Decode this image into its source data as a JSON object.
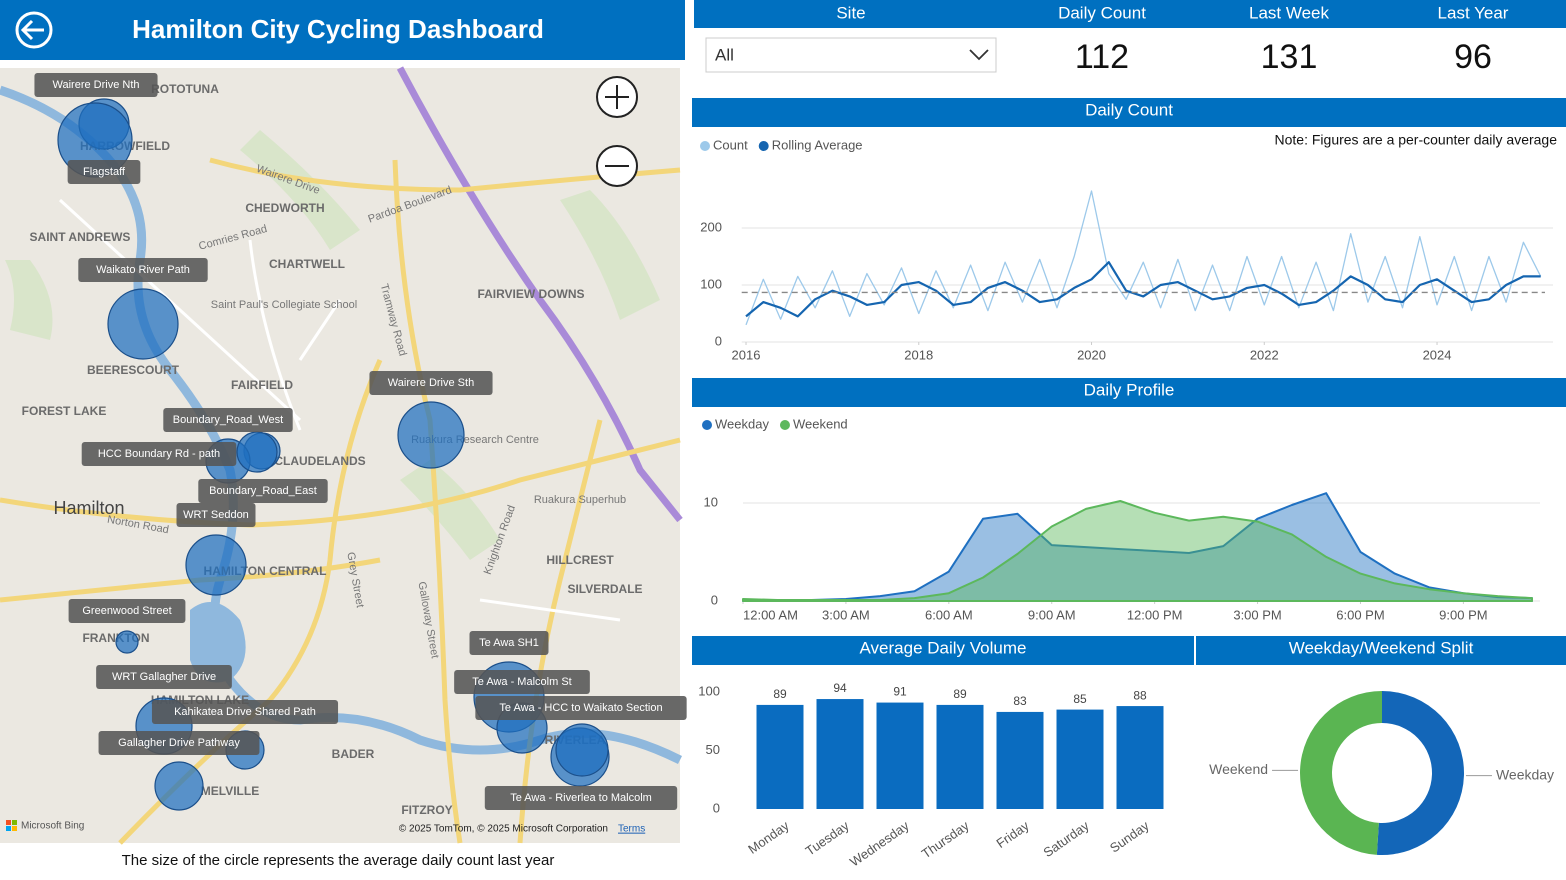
{
  "header": {
    "title": "Hamilton City Cycling Dashboard"
  },
  "kpi": {
    "columns": [
      "Site",
      "Daily Count",
      "Last Week",
      "Last Year"
    ],
    "site_filter": "All",
    "values": [
      112,
      131,
      96
    ]
  },
  "map": {
    "sites": [
      "Wairere Drive Nth",
      "Flagstaff",
      "Waikato River Path",
      "Wairere Drive Sth",
      "Boundary_Road_West",
      "HCC Boundary Rd - path",
      "Boundary_Road_East",
      "WRT Seddon",
      "Greenwood Street",
      "WRT Gallagher Drive",
      "Kahikatea Drive Shared Path",
      "Gallagher Drive Pathway",
      "Te Awa SH1",
      "Te Awa - Malcolm St",
      "Te Awa - HCC to Waikato Section",
      "Te Awa - Riverlea to Malcolm"
    ],
    "places": [
      "ROTOTUNA",
      "HARROWFIELD",
      "CHEDWORTH",
      "SAINT ANDREWS",
      "CHARTWELL",
      "FAIRVIEW DOWNS",
      "BEERESCOURT",
      "FAIRFIELD",
      "FOREST LAKE",
      "CLAUDELANDS",
      "Hamilton",
      "HAMILTON CENTRAL",
      "HILLCREST",
      "SILVERDALE",
      "FRANKTON",
      "HAMILTON LAKE",
      "BADER",
      "MELVILLE",
      "FITZROY",
      "RIVERLEA",
      "Ruakura Superhub",
      "Saint Paul's Collegiate School",
      "Ruakura Research Centre"
    ],
    "roads": [
      "Wairere Drive",
      "Pardoa Boulevard",
      "Comries Road",
      "Tramway Road",
      "Grey Street",
      "Galloway Street",
      "Knighton Road",
      "Norton Road"
    ],
    "attribution": "© 2025 TomTom, © 2025 Microsoft Corporation",
    "terms": "Terms",
    "provider": "Microsoft Bing",
    "caption": "The size of the circle represents the average daily count last year"
  },
  "chart_data": [
    {
      "type": "line",
      "title": "Daily Count",
      "note": "Note: Figures are a per-counter daily average",
      "x": [
        2016,
        2016.2,
        2016.4,
        2016.6,
        2016.8,
        2017,
        2017.2,
        2017.4,
        2017.6,
        2017.8,
        2018,
        2018.2,
        2018.4,
        2018.6,
        2018.8,
        2019,
        2019.2,
        2019.4,
        2019.6,
        2019.8,
        2020,
        2020.2,
        2020.4,
        2020.6,
        2020.8,
        2021,
        2021.2,
        2021.4,
        2021.6,
        2021.8,
        2022,
        2022.2,
        2022.4,
        2022.6,
        2022.8,
        2023,
        2023.2,
        2023.4,
        2023.6,
        2023.8,
        2024,
        2024.2,
        2024.4,
        2024.6,
        2024.8,
        2025,
        2025.2
      ],
      "series": [
        {
          "name": "Count",
          "color": "#9dc9ea",
          "values": [
            30,
            110,
            40,
            115,
            60,
            125,
            45,
            120,
            65,
            130,
            50,
            125,
            60,
            135,
            55,
            140,
            70,
            145,
            60,
            150,
            265,
            120,
            75,
            140,
            60,
            145,
            55,
            135,
            55,
            150,
            65,
            150,
            60,
            140,
            55,
            190,
            70,
            150,
            60,
            185,
            65,
            150,
            55,
            150,
            70,
            175,
            115
          ]
        },
        {
          "name": "Rolling Average",
          "color": "#1565b0",
          "values": [
            45,
            70,
            60,
            45,
            75,
            90,
            80,
            65,
            70,
            100,
            105,
            90,
            65,
            70,
            95,
            105,
            90,
            70,
            75,
            95,
            110,
            140,
            90,
            80,
            100,
            105,
            90,
            75,
            80,
            95,
            100,
            85,
            65,
            70,
            90,
            115,
            100,
            75,
            70,
            100,
            110,
            90,
            70,
            75,
            100,
            115,
            115
          ]
        }
      ],
      "reference_line": 87,
      "xlim": [
        2015.95,
        2025.25
      ],
      "xticks": [
        2016,
        2018,
        2020,
        2022,
        2024
      ],
      "ylim": [
        0,
        300
      ],
      "yticks": [
        0,
        100,
        200
      ],
      "grid": true,
      "legend": "top-left"
    },
    {
      "type": "area",
      "title": "Daily Profile",
      "x": [
        0,
        1,
        2,
        3,
        4,
        5,
        6,
        7,
        8,
        9,
        10,
        11,
        12,
        13,
        14,
        15,
        16,
        17,
        18,
        19,
        20,
        21,
        22,
        23
      ],
      "series": [
        {
          "name": "Weekday",
          "color": "#1f70c1",
          "values": [
            0.1,
            0.1,
            0.1,
            0.2,
            0.5,
            1,
            3,
            8.4,
            8.9,
            5.7,
            5.5,
            5.3,
            5.1,
            4.9,
            5.6,
            8.4,
            9.8,
            11,
            5,
            2.8,
            1.4,
            0.8,
            0.4,
            0.3
          ]
        },
        {
          "name": "Weekend",
          "color": "#5cb85c",
          "values": [
            0.2,
            0.1,
            0.1,
            0.1,
            0.1,
            0.3,
            0.8,
            2.4,
            4.8,
            7.6,
            9.4,
            10.2,
            9,
            8.2,
            8.6,
            8.1,
            6.8,
            4.5,
            2.8,
            1.8,
            1.2,
            0.8,
            0.5,
            0.3
          ]
        }
      ],
      "xlim": [
        0,
        23
      ],
      "xticks": [
        {
          "value": 0,
          "label": "12:00 AM"
        },
        {
          "value": 3,
          "label": "3:00 AM"
        },
        {
          "value": 6,
          "label": "6:00 AM"
        },
        {
          "value": 9,
          "label": "9:00 AM"
        },
        {
          "value": 12,
          "label": "12:00 PM"
        },
        {
          "value": 15,
          "label": "3:00 PM"
        },
        {
          "value": 18,
          "label": "6:00 PM"
        },
        {
          "value": 21,
          "label": "9:00 PM"
        }
      ],
      "ylim": [
        0,
        15
      ],
      "yticks": [
        0,
        10
      ],
      "grid": true,
      "legend": "top-left"
    },
    {
      "type": "bar",
      "title": "Average Daily Volume",
      "categories": [
        "Monday",
        "Tuesday",
        "Wednesday",
        "Thursday",
        "Friday",
        "Saturday",
        "Sunday"
      ],
      "values": [
        89,
        94,
        91,
        89,
        83,
        85,
        88
      ],
      "color": "#0a6cc0",
      "ylim": [
        0,
        115
      ],
      "yticks": [
        0,
        50,
        100
      ],
      "grid": false
    },
    {
      "type": "pie",
      "title": "Weekday/Weekend Split",
      "categories": [
        "Weekday",
        "Weekend"
      ],
      "values": [
        51,
        49
      ],
      "colors": [
        "#1366b8",
        "#5ab552"
      ],
      "donut": true
    }
  ]
}
